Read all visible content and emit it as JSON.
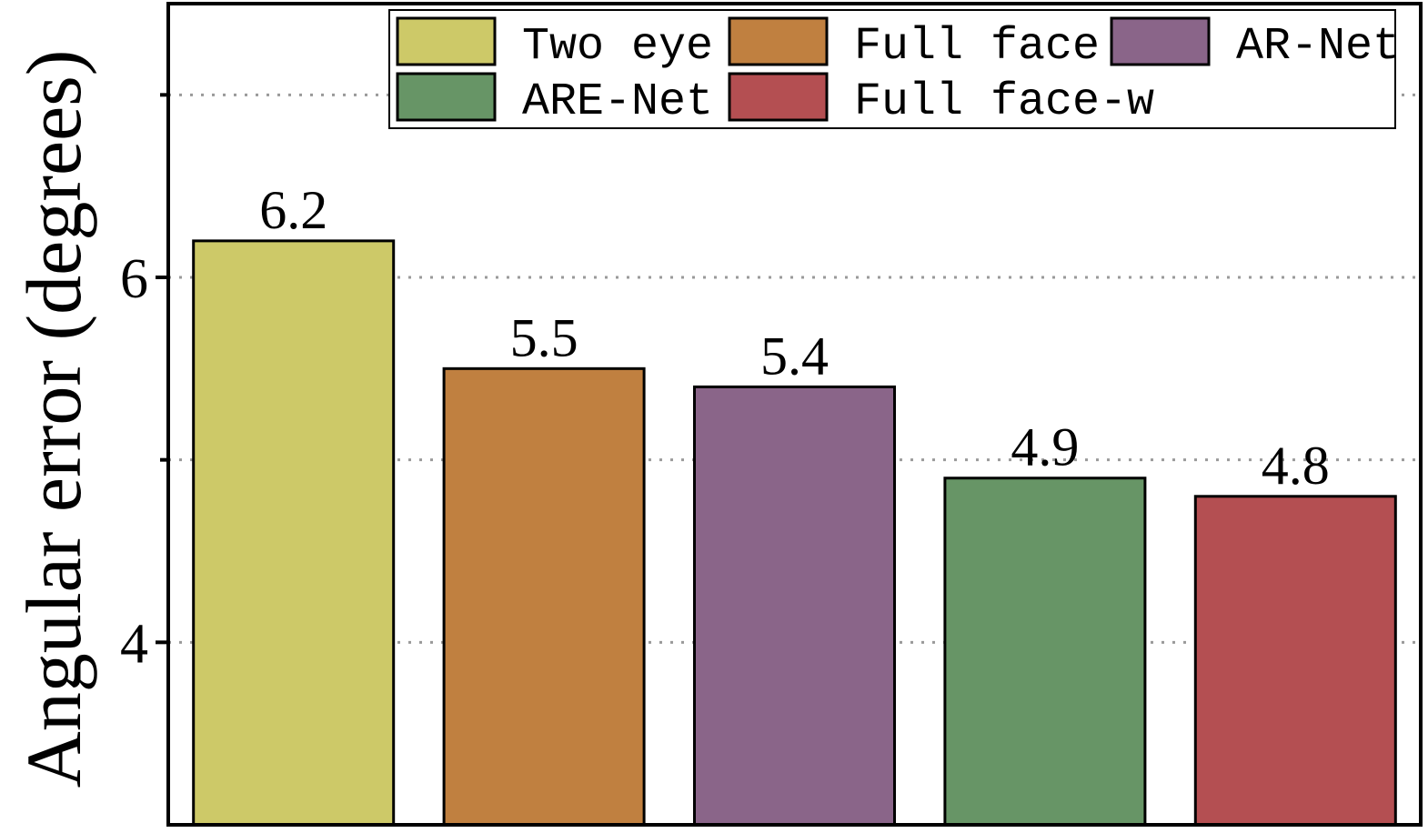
{
  "chart_data": {
    "type": "bar",
    "title": "",
    "xlabel": "",
    "ylabel": "Angular error (degrees)",
    "ylim": [
      3.0,
      7.5
    ],
    "yticks": [
      4,
      6
    ],
    "ytick_labels": [
      "4",
      "6"
    ],
    "minor_ticks": [
      5,
      7
    ],
    "grid": true,
    "legend_position": "top-right",
    "categories": [
      "Two eye",
      "Full face",
      "AR-Net",
      "ARE-Net",
      "Full face-w"
    ],
    "values": [
      6.2,
      5.5,
      5.4,
      4.9,
      4.8
    ],
    "value_labels": [
      "6.2",
      "5.5",
      "5.4",
      "4.9",
      "4.8"
    ],
    "colors": [
      "#cdc968",
      "#c08040",
      "#8a6589",
      "#679566",
      "#b44f52"
    ],
    "legend": [
      [
        "Two eye",
        "Full face",
        "AR-Net"
      ],
      [
        "ARE-Net",
        "Full face-w"
      ]
    ]
  }
}
